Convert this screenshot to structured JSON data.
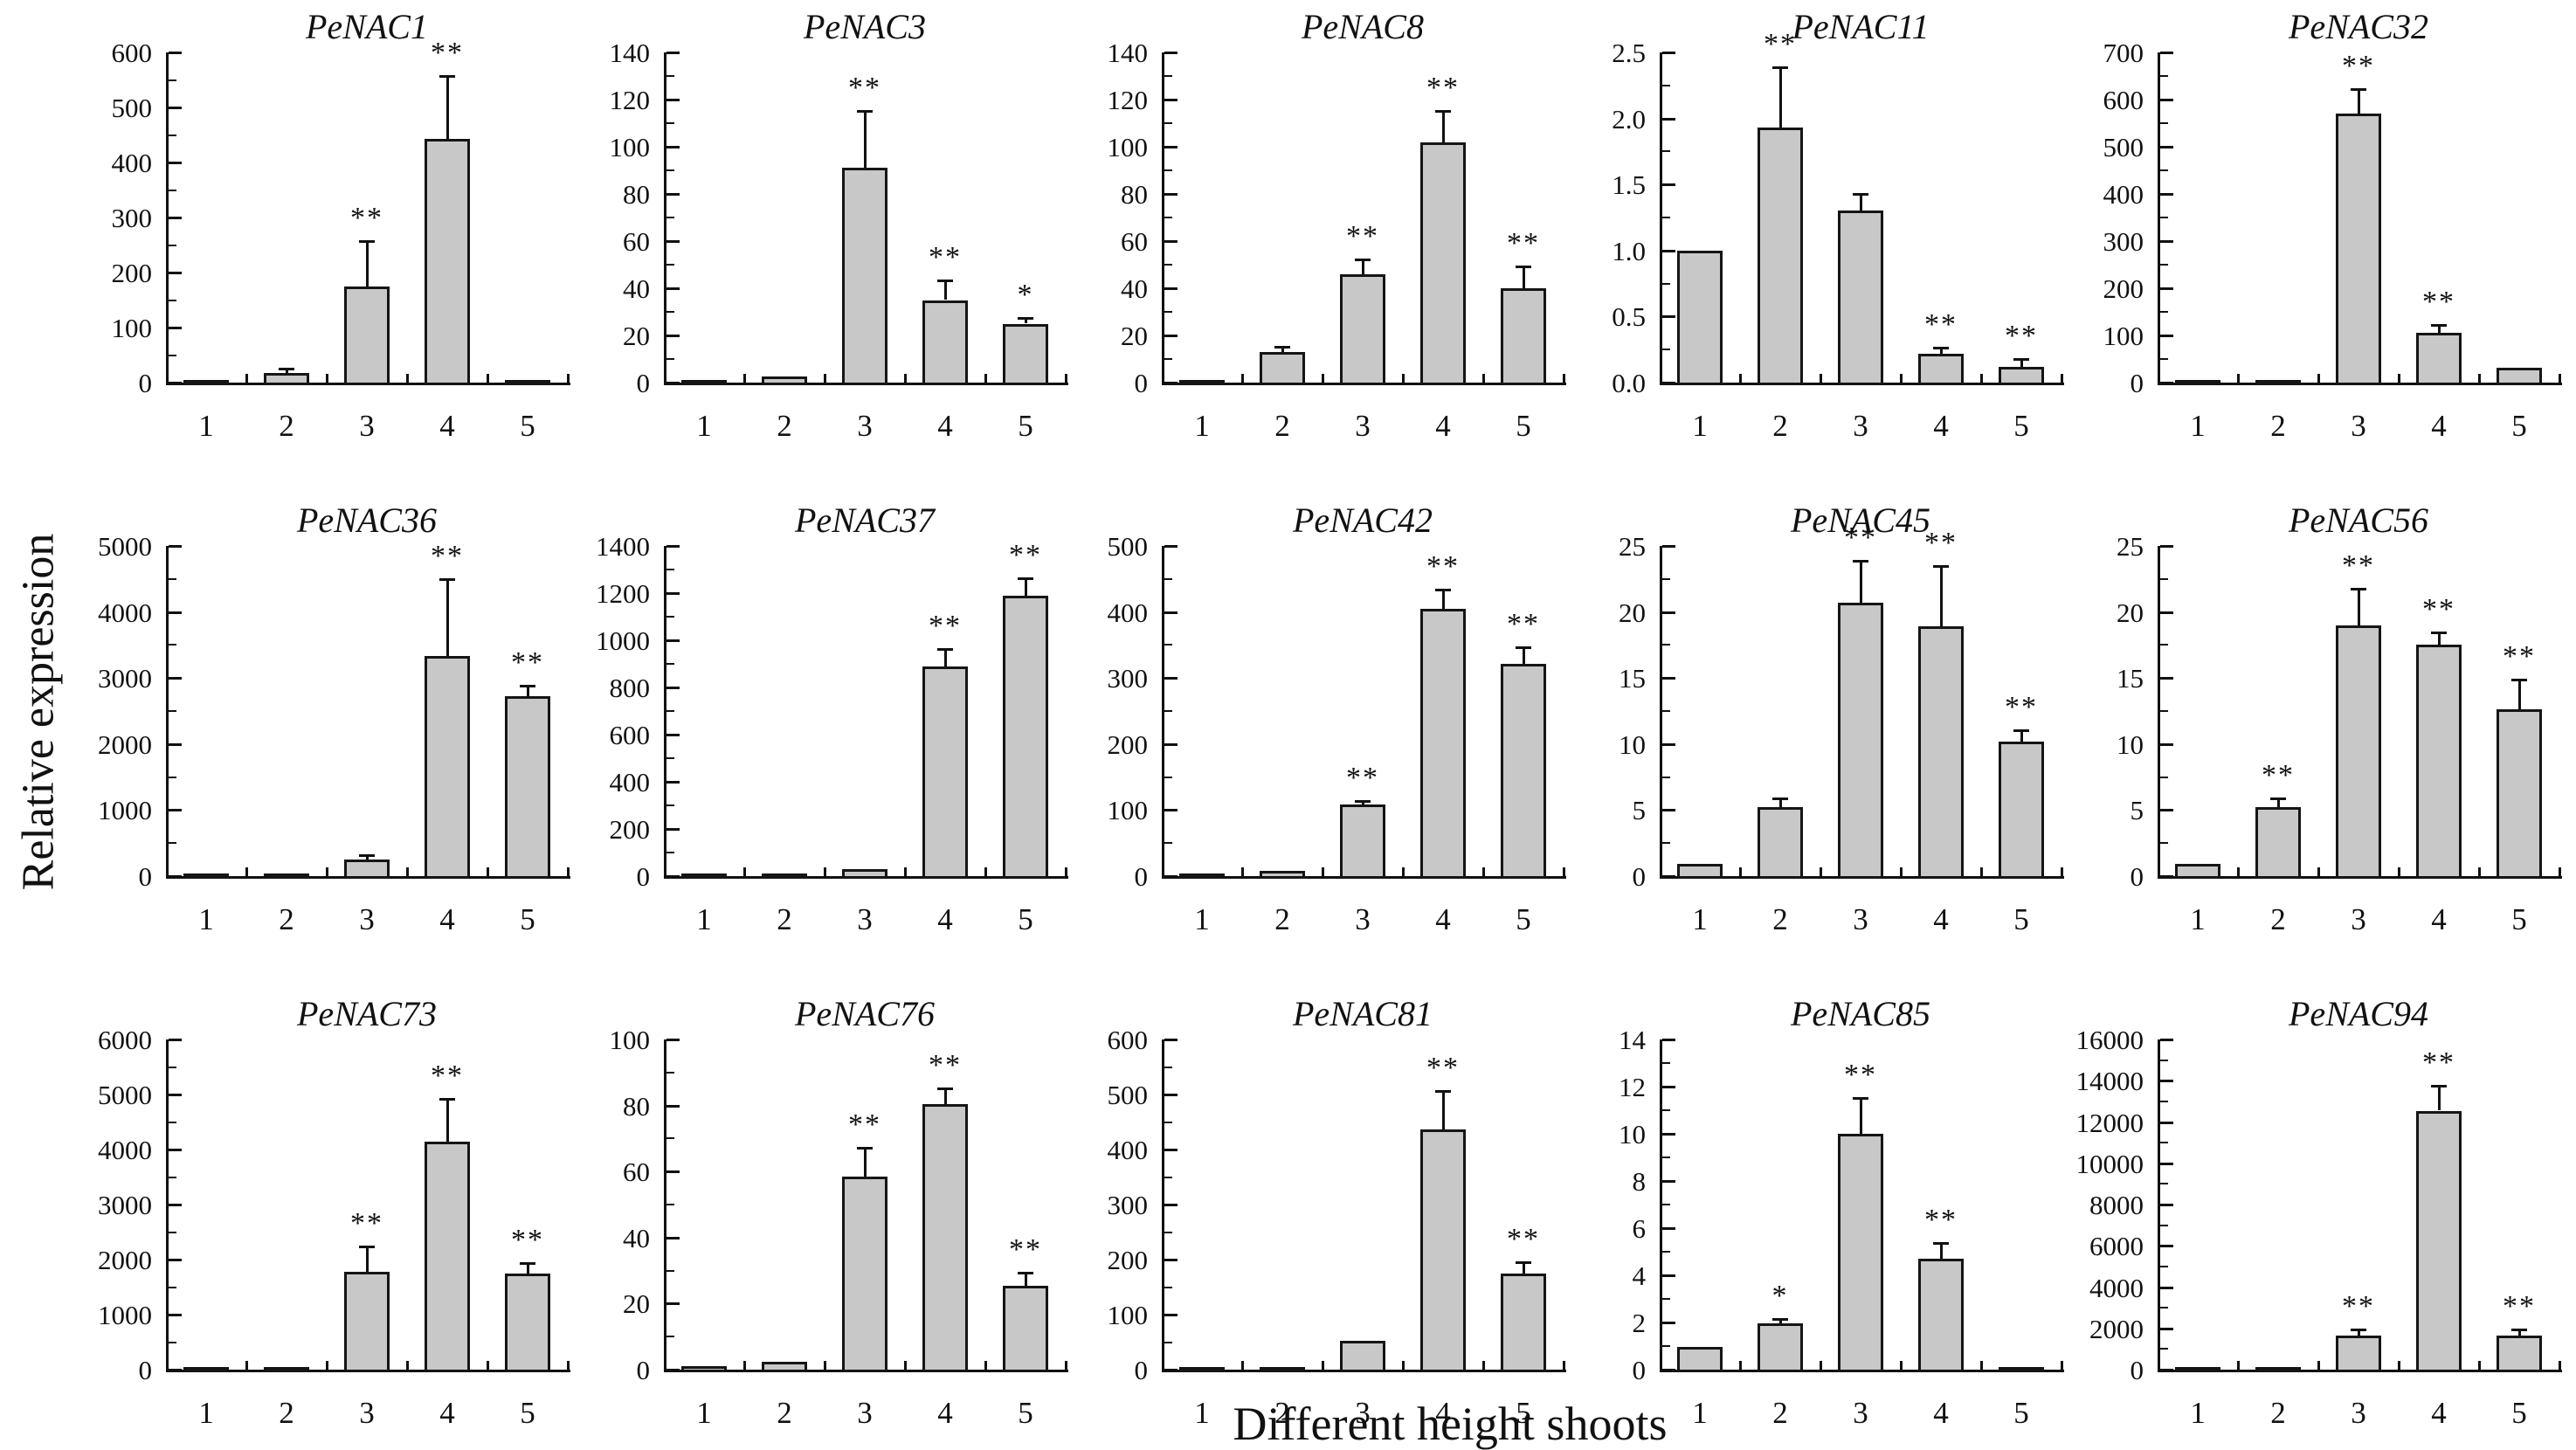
{
  "figure": {
    "ylabel": "Relative expression",
    "xlabel": "Different height shoots",
    "bar_fill": "#c8c8c8",
    "bar_border": "#151515",
    "axis_color": "#111111"
  },
  "chart_data": [
    {
      "type": "bar",
      "title": "PeNAC1",
      "xlabel": "",
      "ylabel": "",
      "categories": [
        "1",
        "2",
        "3",
        "4",
        "5"
      ],
      "values": [
        3,
        18,
        175,
        443,
        3
      ],
      "errors": [
        1,
        6,
        80,
        112,
        1
      ],
      "significance": [
        "",
        "",
        "**",
        "**",
        ""
      ],
      "ylim": [
        0,
        600
      ],
      "ticks": [
        "0",
        "100",
        "200",
        "300",
        "400",
        "500",
        "600"
      ]
    },
    {
      "type": "bar",
      "title": "PeNAC3",
      "xlabel": "",
      "ylabel": "",
      "categories": [
        "1",
        "2",
        "3",
        "4",
        "5"
      ],
      "values": [
        1,
        2.5,
        91,
        35,
        25
      ],
      "errors": [
        0.3,
        0.5,
        24,
        8,
        2
      ],
      "significance": [
        "",
        "",
        "**",
        "**",
        "*"
      ],
      "ylim": [
        0,
        140
      ],
      "ticks": [
        "0",
        "20",
        "40",
        "60",
        "80",
        "100",
        "120",
        "140"
      ]
    },
    {
      "type": "bar",
      "title": "PeNAC8",
      "xlabel": "",
      "ylabel": "",
      "categories": [
        "1",
        "2",
        "3",
        "4",
        "5"
      ],
      "values": [
        1,
        13,
        46,
        102,
        40
      ],
      "errors": [
        0.3,
        2,
        6,
        13,
        9
      ],
      "significance": [
        "",
        "",
        "**",
        "**",
        "**"
      ],
      "ylim": [
        0,
        140
      ],
      "ticks": [
        "0",
        "20",
        "40",
        "60",
        "80",
        "100",
        "120",
        "140"
      ]
    },
    {
      "type": "bar",
      "title": "PeNAC11",
      "xlabel": "",
      "ylabel": "",
      "categories": [
        "1",
        "2",
        "3",
        "4",
        "5"
      ],
      "values": [
        1.0,
        1.93,
        1.3,
        0.22,
        0.12
      ],
      "errors": [
        0,
        0.45,
        0.12,
        0.04,
        0.05
      ],
      "significance": [
        "",
        "**",
        "",
        "**",
        "**"
      ],
      "ylim": [
        0,
        2.5
      ],
      "ticks": [
        "0.0",
        "0.5",
        "1.0",
        "1.5",
        "2.0",
        "2.5"
      ]
    },
    {
      "type": "bar",
      "title": "PeNAC32",
      "xlabel": "",
      "ylabel": "",
      "categories": [
        "1",
        "2",
        "3",
        "4",
        "5"
      ],
      "values": [
        3,
        3,
        570,
        105,
        32
      ],
      "errors": [
        1,
        1,
        50,
        15,
        3
      ],
      "significance": [
        "",
        "",
        "**",
        "**",
        ""
      ],
      "ylim": [
        0,
        700
      ],
      "ticks": [
        "0",
        "100",
        "200",
        "300",
        "400",
        "500",
        "600",
        "700"
      ]
    },
    {
      "type": "bar",
      "title": "PeNAC36",
      "xlabel": "",
      "ylabel": "",
      "categories": [
        "1",
        "2",
        "3",
        "4",
        "5"
      ],
      "values": [
        20,
        25,
        250,
        3330,
        2720
      ],
      "errors": [
        5,
        5,
        50,
        1150,
        150
      ],
      "significance": [
        "",
        "",
        "",
        "**",
        "**"
      ],
      "ylim": [
        0,
        5000
      ],
      "ticks": [
        "0",
        "1000",
        "2000",
        "3000",
        "4000",
        "5000"
      ]
    },
    {
      "type": "bar",
      "title": "PeNAC37",
      "xlabel": "",
      "ylabel": "",
      "categories": [
        "1",
        "2",
        "3",
        "4",
        "5"
      ],
      "values": [
        5,
        7,
        30,
        890,
        1190
      ],
      "errors": [
        1,
        1,
        5,
        70,
        70
      ],
      "significance": [
        "",
        "",
        "",
        "**",
        "**"
      ],
      "ylim": [
        0,
        1400
      ],
      "ticks": [
        "0",
        "200",
        "400",
        "600",
        "800",
        "1000",
        "1200",
        "1400"
      ]
    },
    {
      "type": "bar",
      "title": "PeNAC42",
      "xlabel": "",
      "ylabel": "",
      "categories": [
        "1",
        "2",
        "3",
        "4",
        "5"
      ],
      "values": [
        3,
        8,
        108,
        405,
        322
      ],
      "errors": [
        0.5,
        2,
        4,
        28,
        23
      ],
      "significance": [
        "",
        "",
        "**",
        "**",
        "**"
      ],
      "ylim": [
        0,
        500
      ],
      "ticks": [
        "0",
        "100",
        "200",
        "300",
        "400",
        "500"
      ]
    },
    {
      "type": "bar",
      "title": "PeNAC45",
      "xlabel": "",
      "ylabel": "",
      "categories": [
        "1",
        "2",
        "3",
        "4",
        "5"
      ],
      "values": [
        0.9,
        5.2,
        20.7,
        18.9,
        10.2
      ],
      "errors": [
        0.05,
        0.6,
        3.1,
        4.5,
        0.8
      ],
      "significance": [
        "",
        "",
        "**",
        "**",
        "**"
      ],
      "ylim": [
        0,
        25
      ],
      "ticks": [
        "0",
        "5",
        "10",
        "15",
        "20",
        "25"
      ]
    },
    {
      "type": "bar",
      "title": "PeNAC56",
      "xlabel": "",
      "ylabel": "",
      "categories": [
        "1",
        "2",
        "3",
        "4",
        "5"
      ],
      "values": [
        0.9,
        5.2,
        19,
        17.5,
        12.6
      ],
      "errors": [
        0.05,
        0.6,
        2.7,
        0.9,
        2.2
      ],
      "significance": [
        "",
        "**",
        "**",
        "**",
        "**"
      ],
      "ylim": [
        0,
        25
      ],
      "ticks": [
        "0",
        "5",
        "10",
        "15",
        "20",
        "25"
      ]
    },
    {
      "type": "bar",
      "title": "PeNAC73",
      "xlabel": "",
      "ylabel": "",
      "categories": [
        "1",
        "2",
        "3",
        "4",
        "5"
      ],
      "values": [
        30,
        30,
        1780,
        4150,
        1750
      ],
      "errors": [
        8,
        8,
        450,
        750,
        170
      ],
      "significance": [
        "",
        "",
        "**",
        "**",
        "**"
      ],
      "ylim": [
        0,
        6000
      ],
      "ticks": [
        "0",
        "1000",
        "2000",
        "3000",
        "4000",
        "5000",
        "6000"
      ]
    },
    {
      "type": "bar",
      "title": "PeNAC76",
      "xlabel": "",
      "ylabel": "",
      "categories": [
        "1",
        "2",
        "3",
        "4",
        "5"
      ],
      "values": [
        1,
        2.5,
        58.5,
        80.5,
        25.5
      ],
      "errors": [
        0.2,
        0.3,
        8.5,
        4.5,
        3.5
      ],
      "significance": [
        "",
        "",
        "**",
        "**",
        "**"
      ],
      "ylim": [
        0,
        100
      ],
      "ticks": [
        "0",
        "20",
        "40",
        "60",
        "80",
        "100"
      ]
    },
    {
      "type": "bar",
      "title": "PeNAC81",
      "xlabel": "",
      "ylabel": "",
      "categories": [
        "1",
        "2",
        "3",
        "4",
        "5"
      ],
      "values": [
        3,
        3,
        52,
        437,
        175
      ],
      "errors": [
        0.5,
        0.5,
        2,
        67,
        18
      ],
      "significance": [
        "",
        "",
        "",
        "**",
        "**"
      ],
      "ylim": [
        0,
        600
      ],
      "ticks": [
        "0",
        "100",
        "200",
        "300",
        "400",
        "500",
        "600"
      ]
    },
    {
      "type": "bar",
      "title": "PeNAC85",
      "xlabel": "",
      "ylabel": "",
      "categories": [
        "1",
        "2",
        "3",
        "4",
        "5"
      ],
      "values": [
        0.95,
        1.95,
        10,
        4.7,
        0.1
      ],
      "errors": [
        0.03,
        0.15,
        1.5,
        0.65,
        0.03
      ],
      "significance": [
        "",
        "*",
        "**",
        "**",
        ""
      ],
      "ylim": [
        0,
        14
      ],
      "ticks": [
        "0",
        "2",
        "4",
        "6",
        "8",
        "10",
        "12",
        "14"
      ]
    },
    {
      "type": "bar",
      "title": "PeNAC94",
      "xlabel": "",
      "ylabel": "",
      "categories": [
        "1",
        "2",
        "3",
        "4",
        "5"
      ],
      "values": [
        30,
        40,
        1650,
        12550,
        1650
      ],
      "errors": [
        10,
        10,
        250,
        1150,
        250
      ],
      "significance": [
        "",
        "",
        "**",
        "**",
        "**"
      ],
      "ylim": [
        0,
        16000
      ],
      "ticks": [
        "0",
        "2000",
        "4000",
        "6000",
        "8000",
        "10000",
        "12000",
        "14000",
        "16000"
      ]
    }
  ]
}
